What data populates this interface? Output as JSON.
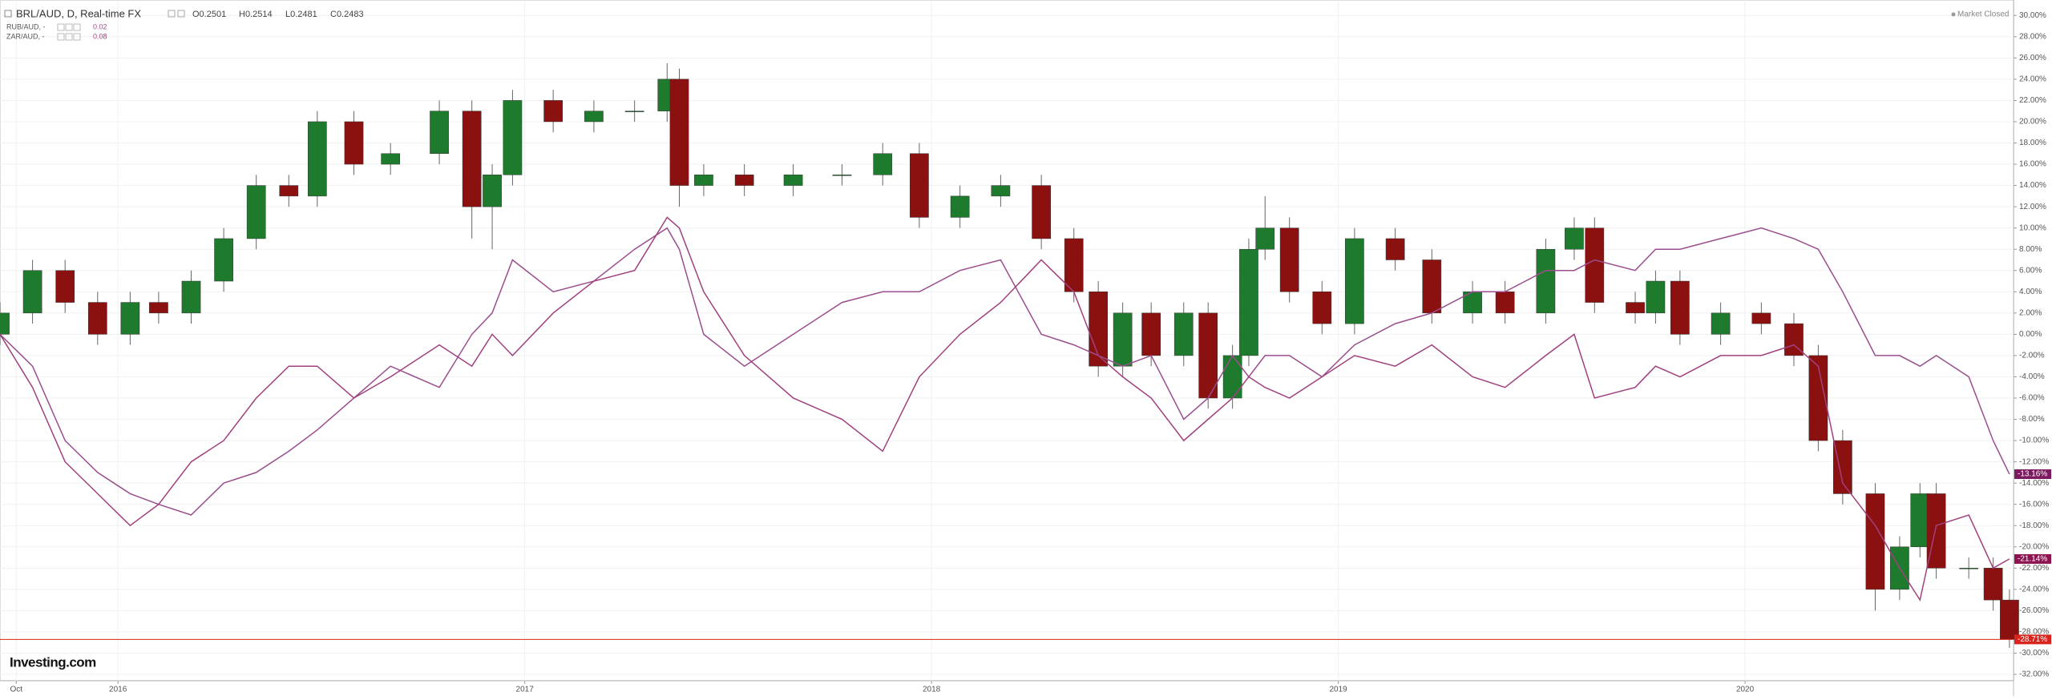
{
  "header": {
    "symbol": "BRL/AUD, D, Real-time FX",
    "open": "O0.2501",
    "high": "H0.2514",
    "low": "L0.2481",
    "close": "C0.2483",
    "status": "Market Closed",
    "logo": "Investing.com"
  },
  "chart_data": {
    "type": "candlestick",
    "x": [
      2015.71,
      2015.79,
      2015.87,
      2015.95,
      2016.03,
      2016.1,
      2016.18,
      2016.26,
      2016.34,
      2016.42,
      2016.49,
      2016.58,
      2016.67,
      2016.79,
      2016.87,
      2016.92,
      2016.97,
      2017.07,
      2017.17,
      2017.27,
      2017.35,
      2017.38,
      2017.44,
      2017.54,
      2017.66,
      2017.78,
      2017.88,
      2017.97,
      2018.07,
      2018.17,
      2018.27,
      2018.35,
      2018.41,
      2018.47,
      2018.54,
      2018.62,
      2018.68,
      2018.74,
      2018.78,
      2018.82,
      2018.88,
      2018.96,
      2019.04,
      2019.14,
      2019.23,
      2019.33,
      2019.41,
      2019.51,
      2019.58,
      2019.63,
      2019.73,
      2019.78,
      2019.84,
      2019.94,
      2020.04,
      2020.12,
      2020.18,
      2020.24,
      2020.32,
      2020.38,
      2020.43,
      2020.47,
      2020.55,
      2020.61,
      2020.65
    ],
    "xlim": [
      2015.71,
      2020.66
    ],
    "xticks": [
      {
        "value": 2015.75,
        "label": "Oct"
      },
      2016,
      2017,
      2018,
      2019,
      2020
    ],
    "ylim": [
      -32.6,
      31.3
    ],
    "yticks": [
      {
        "value": 30,
        "label": "30.00%"
      },
      {
        "value": 28,
        "label": "28.00%"
      },
      {
        "value": 26,
        "label": "26.00%"
      },
      {
        "value": 24,
        "label": "24.00%"
      },
      {
        "value": 22,
        "label": "22.00%"
      },
      {
        "value": 20,
        "label": "20.00%"
      },
      {
        "value": 18,
        "label": "18.00%"
      },
      {
        "value": 16,
        "label": "16.00%"
      },
      {
        "value": 14,
        "label": "14.00%"
      },
      {
        "value": 12,
        "label": "12.00%"
      },
      {
        "value": 10,
        "label": "10.00%"
      },
      {
        "value": 8,
        "label": "8.00%"
      },
      {
        "value": 6,
        "label": "6.00%"
      },
      {
        "value": 4,
        "label": "4.00%"
      },
      {
        "value": 2,
        "label": "2.00%"
      },
      {
        "value": 0,
        "label": "0.00%"
      },
      {
        "value": -2,
        "label": "-2.00%"
      },
      {
        "value": -4,
        "label": "-4.00%"
      },
      {
        "value": -6,
        "label": "-6.00%"
      },
      {
        "value": -8,
        "label": "-8.00%"
      },
      {
        "value": -10,
        "label": "-10.00%"
      },
      {
        "value": -12,
        "label": "-12.00%"
      },
      {
        "value": -14,
        "label": "-14.00%"
      },
      {
        "value": -16,
        "label": "-16.00%"
      },
      {
        "value": -18,
        "label": "-18.00%"
      },
      {
        "value": -20,
        "label": "-20.00%"
      },
      {
        "value": -22,
        "label": "-22.00%"
      },
      {
        "value": -24,
        "label": "-24.00%"
      },
      {
        "value": -26,
        "label": "-26.00%"
      },
      {
        "value": -28,
        "label": "-28.00%"
      },
      {
        "value": -30,
        "label": "-30.00%"
      },
      {
        "value": -32,
        "label": "-32.00%"
      }
    ],
    "grid": true,
    "series": [
      {
        "name": "BRL/AUD",
        "type": "candlestick",
        "up_color": "#1e7b2e",
        "down_color": "#8b1111",
        "open": [
          0,
          2,
          6,
          3,
          0,
          3,
          2,
          5,
          9,
          14,
          13,
          20,
          16,
          17,
          21,
          12,
          15,
          22,
          20,
          21,
          21,
          24,
          14,
          15,
          14,
          15,
          15,
          17,
          11,
          13,
          14,
          9,
          4,
          -3,
          2,
          -2,
          2,
          -6,
          -2,
          8,
          10,
          4,
          1,
          9,
          7,
          2,
          4,
          2,
          8,
          10,
          3,
          2,
          5,
          0,
          2,
          1,
          -2,
          -10,
          -15,
          -24,
          -20,
          -15,
          -22,
          -22,
          -25
        ],
        "high": [
          3,
          7,
          7,
          4,
          4,
          4,
          6,
          10,
          15,
          15,
          21,
          21,
          18,
          22,
          22,
          16,
          23,
          23,
          22,
          22,
          25.5,
          25,
          16,
          16,
          16,
          16,
          18,
          18,
          14,
          15,
          15,
          10,
          5,
          3,
          3,
          3,
          3,
          -1,
          9,
          13,
          11,
          5,
          10,
          10,
          8,
          5,
          5,
          9,
          11,
          11,
          4,
          6,
          6,
          3,
          3,
          2,
          -1,
          -9,
          -14,
          -19,
          -14,
          -14,
          -21,
          -21,
          -24
        ],
        "low": [
          -1,
          1,
          2,
          -1,
          -1,
          1,
          1,
          4,
          8,
          12,
          12,
          15,
          15,
          16,
          9,
          8,
          14,
          19,
          19,
          20,
          20,
          12,
          13,
          13,
          13,
          14,
          14,
          10,
          10,
          12,
          8,
          3,
          -4,
          -4,
          -3,
          -3,
          -7,
          -7,
          -3,
          7,
          3,
          0,
          0,
          6,
          1,
          1,
          1,
          1,
          7,
          2,
          1,
          1,
          -1,
          -1,
          0,
          -3,
          -11,
          -16,
          -26,
          -25,
          -21,
          -23,
          -23,
          -26,
          -29.5
        ],
        "close": [
          2,
          6,
          3,
          0,
          3,
          2,
          5,
          9,
          14,
          13,
          20,
          16,
          17,
          21,
          12,
          15,
          22,
          20,
          21,
          21,
          24,
          14,
          15,
          14,
          15,
          15,
          17,
          11,
          13,
          14,
          9,
          4,
          -3,
          2,
          -2,
          2,
          -6,
          -2,
          8,
          10,
          4,
          1,
          9,
          7,
          2,
          4,
          2,
          8,
          10,
          3,
          2,
          5,
          0,
          2,
          1,
          -2,
          -10,
          -15,
          -24,
          -20,
          -15,
          -22,
          -22,
          -25,
          -28.71
        ]
      },
      {
        "name": "RUB/AUD, -",
        "type": "line",
        "color": "#9a4e8e",
        "legend_value": "0.02",
        "values": [
          0,
          -3,
          -10,
          -13,
          -15,
          -16,
          -17,
          -14,
          -13,
          -11,
          -9,
          -6,
          -3,
          -5,
          0,
          2,
          7,
          4,
          5,
          8,
          10,
          8,
          0,
          -3,
          0,
          3,
          4,
          4,
          6,
          7,
          0,
          -1,
          -2,
          -3,
          -2,
          -8,
          -6,
          -2,
          -4,
          -2,
          -2,
          -4,
          -1,
          1,
          2,
          4,
          4,
          6,
          6,
          7,
          6,
          8,
          8,
          9,
          10,
          9,
          8,
          4,
          -2,
          -2,
          -3,
          -2,
          -4,
          -10,
          -13.16
        ]
      },
      {
        "name": "ZAR/AUD, -",
        "type": "line",
        "color": "#a0407e",
        "legend_value": "0.08",
        "values": [
          0,
          -5,
          -12,
          -15,
          -18,
          -16,
          -12,
          -10,
          -6,
          -3,
          -3,
          -6,
          -4,
          -1,
          -3,
          0,
          -2,
          2,
          5,
          6,
          11,
          10,
          4,
          -2,
          -6,
          -8,
          -11,
          -4,
          0,
          3,
          7,
          4,
          -2,
          -4,
          -6,
          -10,
          -8,
          -6,
          -4,
          -5,
          -6,
          -4,
          -2,
          -3,
          -1,
          -4,
          -5,
          -2,
          0,
          -6,
          -5,
          -3,
          -4,
          -2,
          -2,
          -1,
          -3,
          -14,
          -18,
          -22,
          -25,
          -18,
          -17,
          -22,
          -21.14
        ]
      }
    ],
    "price_labels": [
      {
        "value": -13.16,
        "label": "-13.16%",
        "color": "#7b1a5e"
      },
      {
        "value": -21.14,
        "label": "-21.14%",
        "color": "#8c1450"
      },
      {
        "value": -28.71,
        "label": "-28.71%",
        "color": "#d9241e"
      }
    ]
  }
}
